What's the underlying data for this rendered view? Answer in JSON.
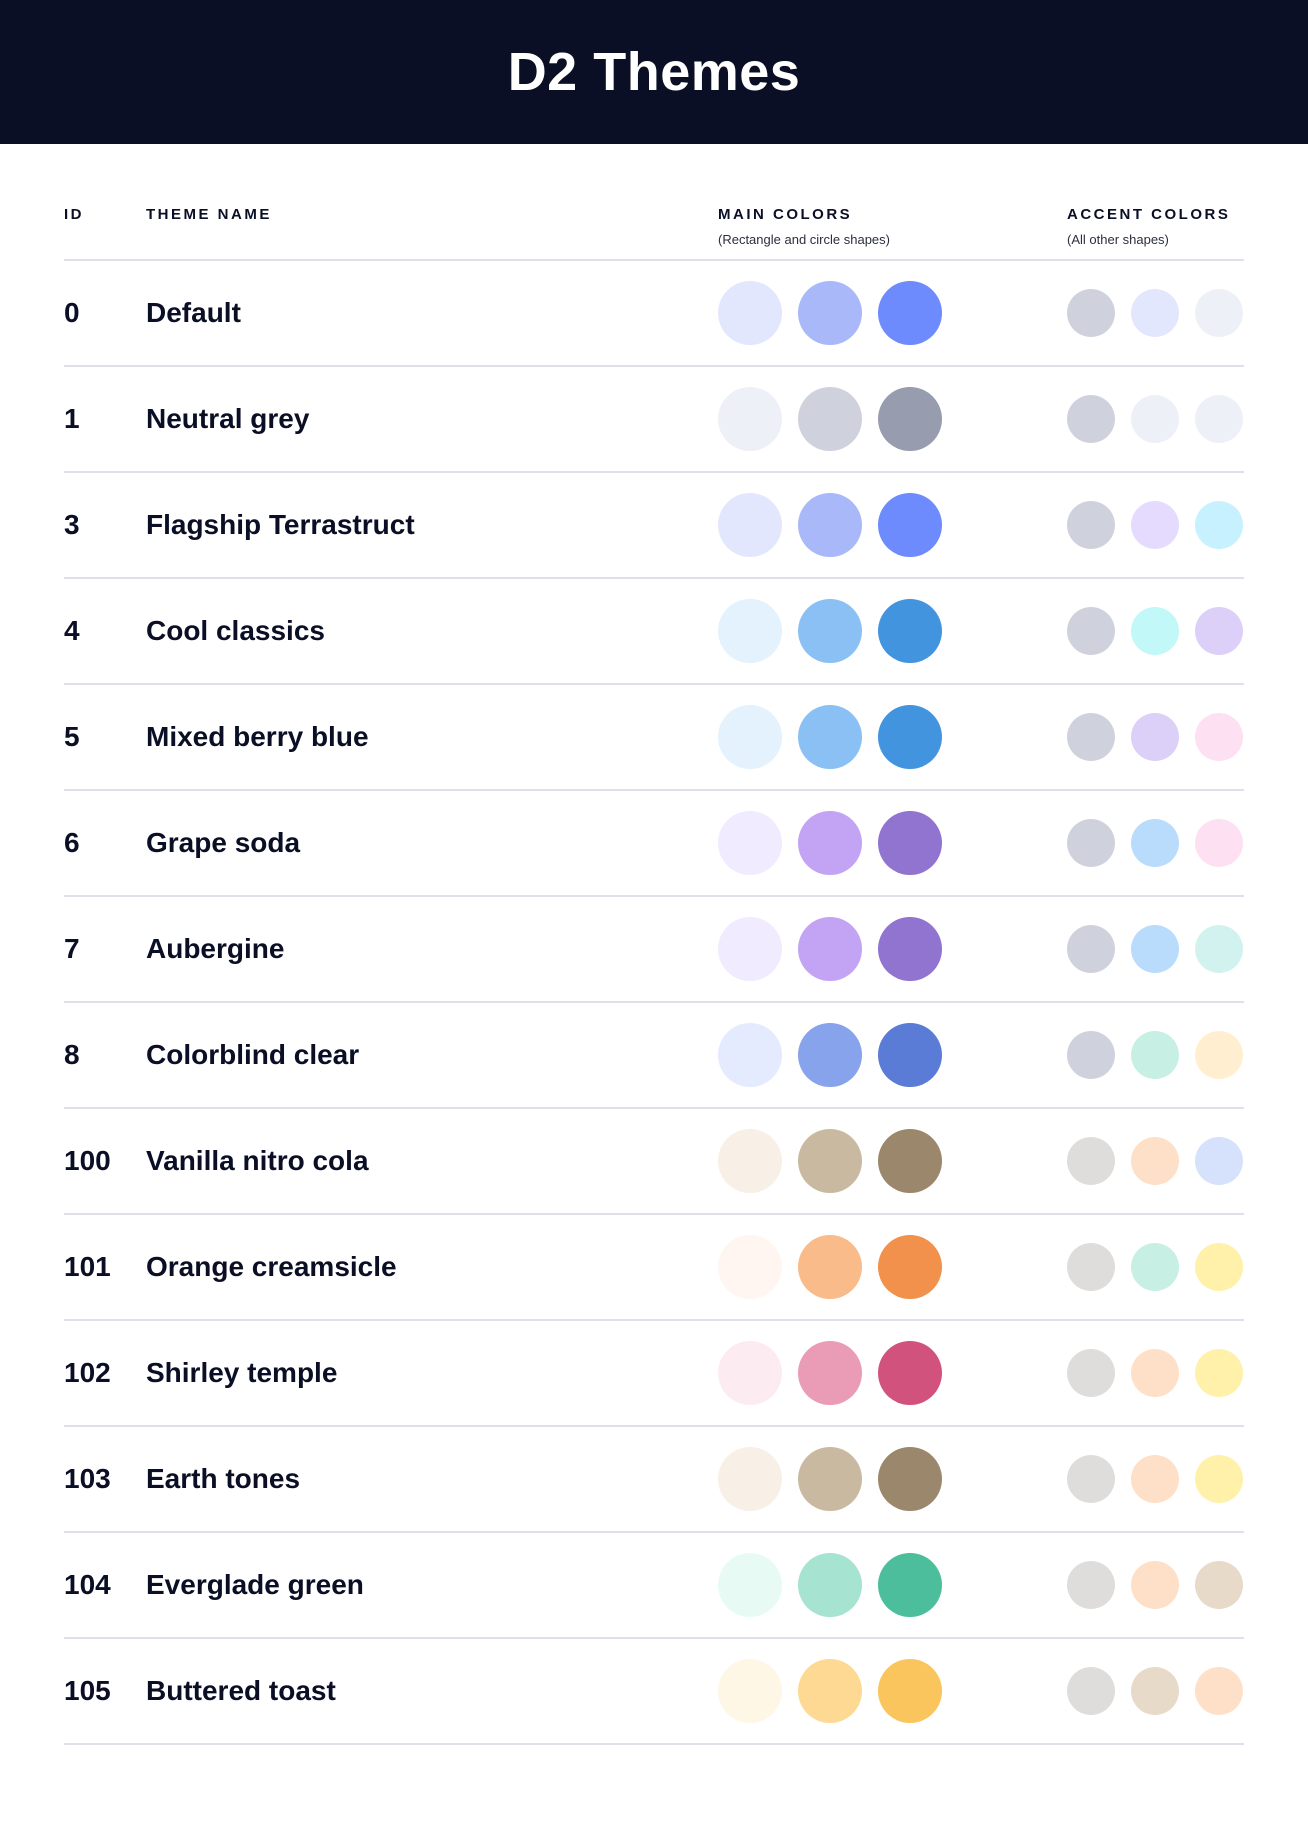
{
  "title": "D2 Themes",
  "columns": {
    "id": "ID",
    "name": "THEME NAME",
    "main": "MAIN COLORS",
    "main_sub": "(Rectangle and circle shapes)",
    "accent": "ACCENT COLORS",
    "accent_sub": "(All other shapes)"
  },
  "themes": [
    {
      "id": "0",
      "name": "Default",
      "main": [
        "#e3e7fd",
        "#a8b8f8",
        "#6d8bfc"
      ],
      "accent": [
        "#cfd2dd",
        "#e3e7fd",
        "#eef0f8"
      ]
    },
    {
      "id": "1",
      "name": "Neutral grey",
      "main": [
        "#eef0f8",
        "#cfd2dd",
        "#979cae"
      ],
      "accent": [
        "#cfd2dd",
        "#eef0f8",
        "#eef0f8"
      ]
    },
    {
      "id": "3",
      "name": "Flagship Terrastruct",
      "main": [
        "#e3e7fd",
        "#a8b8f8",
        "#6d8bfc"
      ],
      "accent": [
        "#cfd2dd",
        "#e5dbff",
        "#c7f1ff"
      ]
    },
    {
      "id": "4",
      "name": "Cool classics",
      "main": [
        "#e3f2fd",
        "#8bc0f4",
        "#4394df"
      ],
      "accent": [
        "#cfd2dd",
        "#c2f8f8",
        "#dccff8"
      ]
    },
    {
      "id": "5",
      "name": "Mixed berry blue",
      "main": [
        "#e3f2fd",
        "#8bc0f4",
        "#4394df"
      ],
      "accent": [
        "#cfd2dd",
        "#dccff8",
        "#fde0f1"
      ]
    },
    {
      "id": "6",
      "name": "Grape soda",
      "main": [
        "#f0ebff",
        "#c3a3f4",
        "#9173d0"
      ],
      "accent": [
        "#cfd2dd",
        "#b9dcfc",
        "#fde0f1"
      ]
    },
    {
      "id": "7",
      "name": "Aubergine",
      "main": [
        "#f0ebff",
        "#c3a3f4",
        "#9173d0"
      ],
      "accent": [
        "#cfd2dd",
        "#b9dcfc",
        "#d2f2ef"
      ]
    },
    {
      "id": "8",
      "name": "Colorblind clear",
      "main": [
        "#e4ebfe",
        "#87a3eb",
        "#5a7bd6"
      ],
      "accent": [
        "#cfd2dd",
        "#c8efe3",
        "#ffefd0"
      ]
    },
    {
      "id": "100",
      "name": "Vanilla nitro cola",
      "main": [
        "#f8f0e6",
        "#c9b9a0",
        "#9b876c"
      ],
      "accent": [
        "#dfdddb",
        "#fee0c8",
        "#d6e1fb"
      ]
    },
    {
      "id": "101",
      "name": "Orange creamsicle",
      "main": [
        "#fff6f1",
        "#fabb8b",
        "#f1914b"
      ],
      "accent": [
        "#dfdddb",
        "#c8efe3",
        "#fff1a9"
      ]
    },
    {
      "id": "102",
      "name": "Shirley temple",
      "main": [
        "#fcecf2",
        "#ea9bb6",
        "#d2527e"
      ],
      "accent": [
        "#dfdddb",
        "#fee0c8",
        "#fff1a9"
      ]
    },
    {
      "id": "103",
      "name": "Earth tones",
      "main": [
        "#f8f0e6",
        "#c9b9a0",
        "#9b876c"
      ],
      "accent": [
        "#dfdddb",
        "#fee0c8",
        "#fff1a9"
      ]
    },
    {
      "id": "104",
      "name": "Everglade green",
      "main": [
        "#e7fbf4",
        "#a6e3d0",
        "#4cbe9b"
      ],
      "accent": [
        "#dfdddb",
        "#fee0c8",
        "#e7dac9"
      ]
    },
    {
      "id": "105",
      "name": "Buttered toast",
      "main": [
        "#fff7e6",
        "#fed993",
        "#fac55c"
      ],
      "accent": [
        "#dfdddb",
        "#e7dac9",
        "#fee0c8"
      ]
    }
  ]
}
